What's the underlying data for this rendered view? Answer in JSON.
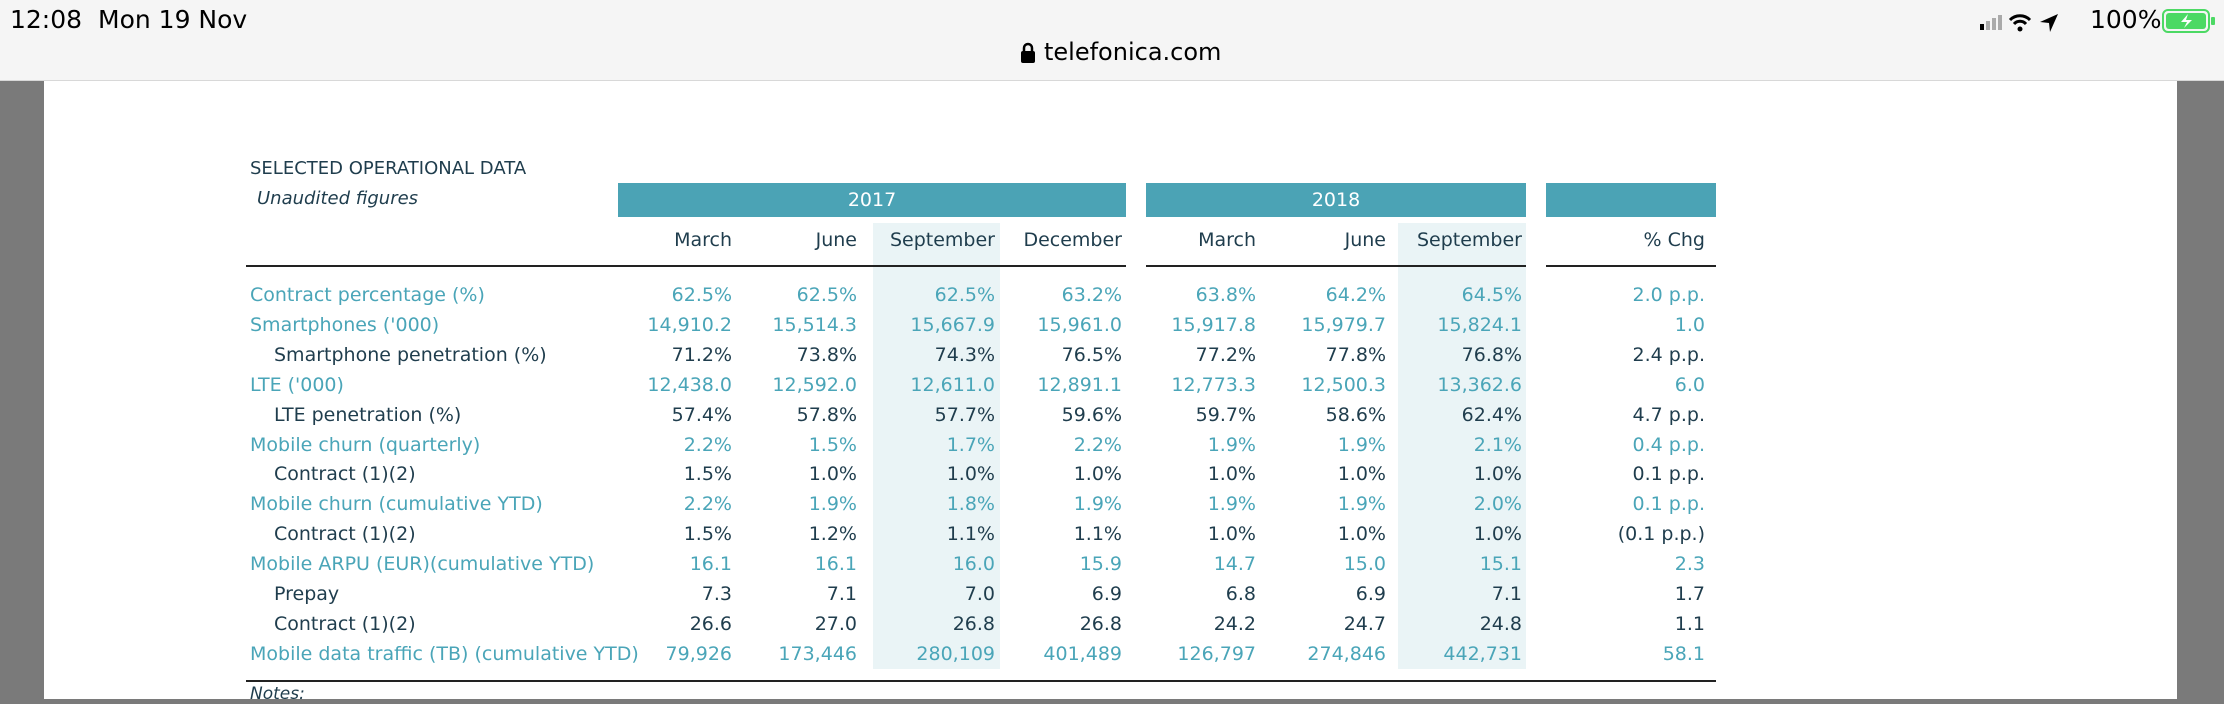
{
  "status_bar": {
    "time": "12:08",
    "date": "Mon 19 Nov",
    "url": "telefonica.com",
    "battery": "100%"
  },
  "table": {
    "title": "SELECTED OPERATIONAL DATA",
    "subtitle": "Unaudited figures",
    "years": [
      "2017",
      "2018"
    ],
    "columns": [
      "March",
      "June",
      "September",
      "December",
      "March",
      "June",
      "September",
      "% Chg"
    ],
    "rows": [
      {
        "label": "Contract percentage (%)",
        "sub": false,
        "values": [
          "62.5%",
          "62.5%",
          "62.5%",
          "63.2%",
          "63.8%",
          "64.2%",
          "64.5%",
          "2.0 p.p."
        ]
      },
      {
        "label": "Smartphones ('000)",
        "sub": false,
        "values": [
          "14,910.2",
          "15,514.3",
          "15,667.9",
          "15,961.0",
          "15,917.8",
          "15,979.7",
          "15,824.1",
          "1.0"
        ]
      },
      {
        "label": "Smartphone penetration (%)",
        "sub": true,
        "values": [
          "71.2%",
          "73.8%",
          "74.3%",
          "76.5%",
          "77.2%",
          "77.8%",
          "76.8%",
          "2.4 p.p."
        ]
      },
      {
        "label": "LTE ('000)",
        "sub": false,
        "values": [
          "12,438.0",
          "12,592.0",
          "12,611.0",
          "12,891.1",
          "12,773.3",
          "12,500.3",
          "13,362.6",
          "6.0"
        ]
      },
      {
        "label": "LTE penetration (%)",
        "sub": true,
        "values": [
          "57.4%",
          "57.8%",
          "57.7%",
          "59.6%",
          "59.7%",
          "58.6%",
          "62.4%",
          "4.7 p.p."
        ]
      },
      {
        "label": "Mobile churn (quarterly)",
        "sub": false,
        "values": [
          "2.2%",
          "1.5%",
          "1.7%",
          "2.2%",
          "1.9%",
          "1.9%",
          "2.1%",
          "0.4 p.p."
        ]
      },
      {
        "label": "Contract (1)(2)",
        "sub": true,
        "values": [
          "1.5%",
          "1.0%",
          "1.0%",
          "1.0%",
          "1.0%",
          "1.0%",
          "1.0%",
          "0.1 p.p."
        ]
      },
      {
        "label": "Mobile churn (cumulative YTD)",
        "sub": false,
        "values": [
          "2.2%",
          "1.9%",
          "1.8%",
          "1.9%",
          "1.9%",
          "1.9%",
          "2.0%",
          "0.1 p.p."
        ]
      },
      {
        "label": "Contract (1)(2)",
        "sub": true,
        "values": [
          "1.5%",
          "1.2%",
          "1.1%",
          "1.1%",
          "1.0%",
          "1.0%",
          "1.0%",
          "(0.1 p.p.)"
        ]
      },
      {
        "label": "Mobile ARPU (EUR)(cumulative YTD)",
        "sub": false,
        "values": [
          "16.1",
          "16.1",
          "16.0",
          "15.9",
          "14.7",
          "15.0",
          "15.1",
          "2.3"
        ]
      },
      {
        "label": "Prepay",
        "sub": true,
        "values": [
          "7.3",
          "7.1",
          "7.0",
          "6.9",
          "6.8",
          "6.9",
          "7.1",
          "1.7"
        ]
      },
      {
        "label": "Contract (1)(2)",
        "sub": true,
        "values": [
          "26.6",
          "27.0",
          "26.8",
          "26.8",
          "24.2",
          "24.7",
          "24.8",
          "1.1"
        ]
      },
      {
        "label": "Mobile data traffic (TB) (cumulative YTD)",
        "sub": false,
        "values": [
          "79,926",
          "173,446",
          "280,109",
          "401,489",
          "126,797",
          "274,846",
          "442,731",
          "58.1"
        ]
      }
    ],
    "notes": "Notes:"
  }
}
